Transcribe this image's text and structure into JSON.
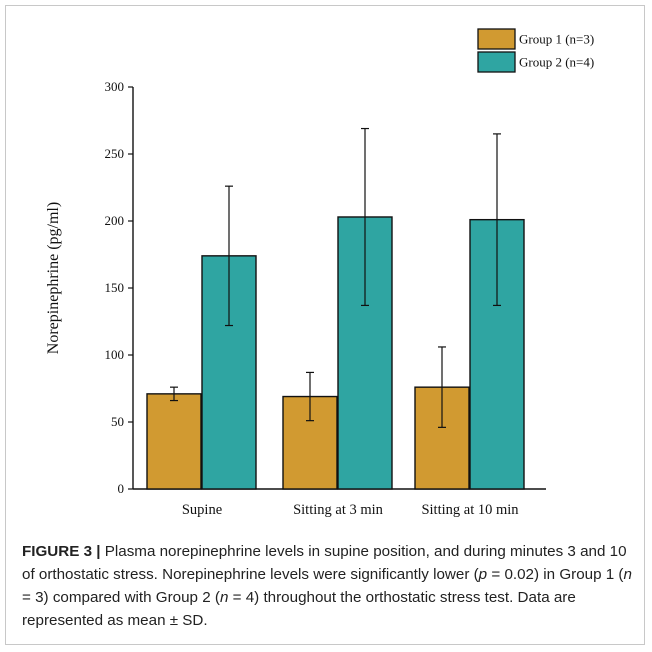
{
  "chart_data": {
    "type": "bar",
    "categories": [
      "Supine",
      "Sitting at 3 min",
      "Sitting at 10 min"
    ],
    "series": [
      {
        "name": "Group 1 (n=3)",
        "values": [
          71,
          69,
          76
        ],
        "errors": [
          5,
          18,
          30
        ],
        "color": "#d19a31"
      },
      {
        "name": "Group 2 (n=4)",
        "values": [
          174,
          203,
          201
        ],
        "errors": [
          52,
          66,
          64
        ],
        "color": "#2fa5a2"
      }
    ],
    "ylabel": "Norepinephrine (pg/ml)",
    "xlabel": "",
    "ylim": [
      0,
      300
    ],
    "yticks": [
      "0",
      "50",
      "100",
      "150",
      "200",
      "250",
      "300"
    ],
    "legend_position": "top-right",
    "grid": false
  },
  "caption": {
    "label": "FIGURE 3 |",
    "part1": "Plasma norepinephrine levels in supine position, and during minutes 3 and 10 of orthostatic stress. Norepinephrine levels were significantly lower (",
    "p_sym": "p",
    "p_val": "= 0.02) in Group 1 (",
    "n1_sym": "n",
    "n1_val": "= 3) compared with Group 2 (",
    "n2_sym": "n",
    "n2_val": "= 4) throughout the orthostatic stress test. Data are represented as mean ± SD."
  }
}
